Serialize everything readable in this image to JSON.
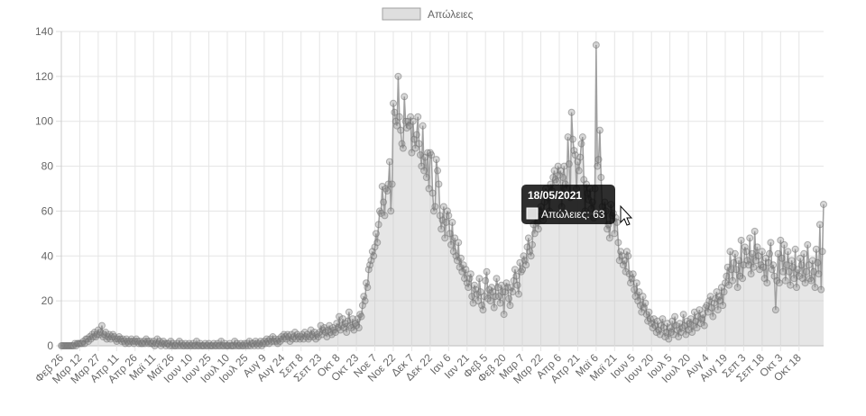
{
  "chart_data": {
    "type": "line",
    "grid": true,
    "legend": "top",
    "tooltip": {
      "title": "18/05/2021",
      "label": "Απώλειες: 63"
    },
    "ylim": [
      0,
      140
    ],
    "yticks": [
      0,
      20,
      40,
      60,
      80,
      100,
      120,
      140
    ],
    "categories": [
      "Φεβ 26",
      null,
      null,
      null,
      null,
      null,
      null,
      null,
      null,
      null,
      null,
      null,
      null,
      null,
      null,
      "Μαρ 12",
      null,
      null,
      null,
      null,
      null,
      null,
      null,
      null,
      null,
      null,
      null,
      null,
      null,
      null,
      "Μαρ 27",
      null,
      null,
      null,
      null,
      null,
      null,
      null,
      null,
      null,
      null,
      null,
      null,
      null,
      null,
      "Απρ 11",
      null,
      null,
      null,
      null,
      null,
      null,
      null,
      null,
      null,
      null,
      null,
      null,
      null,
      null,
      "Απρ 26",
      null,
      null,
      null,
      null,
      null,
      null,
      null,
      null,
      null,
      null,
      null,
      null,
      null,
      null,
      "Μαϊ 11",
      null,
      null,
      null,
      null,
      null,
      null,
      null,
      null,
      null,
      null,
      null,
      null,
      null,
      null,
      "Μαϊ 26",
      null,
      null,
      null,
      null,
      null,
      null,
      null,
      null,
      null,
      null,
      null,
      null,
      null,
      null,
      "Ιουν 10",
      null,
      null,
      null,
      null,
      null,
      null,
      null,
      null,
      null,
      null,
      null,
      null,
      null,
      null,
      "Ιουν 25",
      null,
      null,
      null,
      null,
      null,
      null,
      null,
      null,
      null,
      null,
      null,
      null,
      null,
      null,
      "Ιουλ 10",
      null,
      null,
      null,
      null,
      null,
      null,
      null,
      null,
      null,
      null,
      null,
      null,
      null,
      null,
      "Ιουλ 25",
      null,
      null,
      null,
      null,
      null,
      null,
      null,
      null,
      null,
      null,
      null,
      null,
      null,
      null,
      "Αυγ 9",
      null,
      null,
      null,
      null,
      null,
      null,
      null,
      null,
      null,
      null,
      null,
      null,
      null,
      null,
      "Αυγ 24",
      null,
      null,
      null,
      null,
      null,
      null,
      null,
      null,
      null,
      null,
      null,
      null,
      null,
      null,
      "Σεπ 8",
      null,
      null,
      null,
      null,
      null,
      null,
      null,
      null,
      null,
      null,
      null,
      null,
      null,
      null,
      "Σεπ 23",
      null,
      null,
      null,
      null,
      null,
      null,
      null,
      null,
      null,
      null,
      null,
      null,
      null,
      null,
      "Οκτ 8",
      null,
      null,
      null,
      null,
      null,
      null,
      null,
      null,
      null,
      null,
      null,
      null,
      null,
      null,
      "Οκτ 23",
      null,
      null,
      null,
      null,
      null,
      null,
      null,
      null,
      null,
      null,
      null,
      null,
      null,
      null,
      "Νοε 7",
      null,
      null,
      null,
      null,
      null,
      null,
      null,
      null,
      null,
      null,
      null,
      null,
      null,
      null,
      "Νοε 22",
      null,
      null,
      null,
      null,
      null,
      null,
      null,
      null,
      null,
      null,
      null,
      null,
      null,
      null,
      "Δεκ 7",
      null,
      null,
      null,
      null,
      null,
      null,
      null,
      null,
      null,
      null,
      null,
      null,
      null,
      null,
      "Δεκ 22",
      null,
      null,
      null,
      null,
      null,
      null,
      null,
      null,
      null,
      null,
      null,
      null,
      null,
      null,
      "Ιαν 6",
      null,
      null,
      null,
      null,
      null,
      null,
      null,
      null,
      null,
      null,
      null,
      null,
      null,
      null,
      "Ιαν 21",
      null,
      null,
      null,
      null,
      null,
      null,
      null,
      null,
      null,
      null,
      null,
      null,
      null,
      null,
      "Φεβ 5",
      null,
      null,
      null,
      null,
      null,
      null,
      null,
      null,
      null,
      null,
      null,
      null,
      null,
      null,
      "Φεβ 20",
      null,
      null,
      null,
      null,
      null,
      null,
      null,
      null,
      null,
      null,
      null,
      null,
      null,
      null,
      "Μαρ 7",
      null,
      null,
      null,
      null,
      null,
      null,
      null,
      null,
      null,
      null,
      null,
      null,
      null,
      null,
      "Μαρ 22",
      null,
      null,
      null,
      null,
      null,
      null,
      null,
      null,
      null,
      null,
      null,
      null,
      null,
      null,
      "Απρ 6",
      null,
      null,
      null,
      null,
      null,
      null,
      null,
      null,
      null,
      null,
      null,
      null,
      null,
      null,
      "Απρ 21",
      null,
      null,
      null,
      null,
      null,
      null,
      null,
      null,
      null,
      null,
      null,
      null,
      null,
      null,
      "Μαϊ 6",
      null,
      null,
      null,
      null,
      null,
      null,
      null,
      null,
      null,
      null,
      null,
      null,
      null,
      null,
      "Μαϊ 21",
      null,
      null,
      null,
      null,
      null,
      null,
      null,
      null,
      null,
      null,
      null,
      null,
      null,
      null,
      "Ιουν 5",
      null,
      null,
      null,
      null,
      null,
      null,
      null,
      null,
      null,
      null,
      null,
      null,
      null,
      null,
      "Ιουν 20",
      null,
      null,
      null,
      null,
      null,
      null,
      null,
      null,
      null,
      null,
      null,
      null,
      null,
      null,
      "Ιουλ 5",
      null,
      null,
      null,
      null,
      null,
      null,
      null,
      null,
      null,
      null,
      null,
      null,
      null,
      null,
      "Ιουλ 20",
      null,
      null,
      null,
      null,
      null,
      null,
      null,
      null,
      null,
      null,
      null,
      null,
      null,
      null,
      "Αυγ 4",
      null,
      null,
      null,
      null,
      null,
      null,
      null,
      null,
      null,
      null,
      null,
      null,
      null,
      null,
      "Αυγ 19",
      null,
      null,
      null,
      null,
      null,
      null,
      null,
      null,
      null,
      null,
      null,
      null,
      null,
      null,
      "Σεπ 3",
      null,
      null,
      null,
      null,
      null,
      null,
      null,
      null,
      null,
      null,
      null,
      null,
      null,
      null,
      "Σεπ 18",
      null,
      null,
      null,
      null,
      null,
      null,
      null,
      null,
      null,
      null,
      null,
      null,
      null,
      null,
      "Οκτ 3",
      null,
      null,
      null,
      null,
      null,
      null,
      null,
      null,
      null,
      null,
      null,
      null,
      null,
      null,
      "Οκτ 18",
      null,
      null,
      null,
      null,
      null,
      null,
      null,
      null,
      null,
      null,
      null,
      null,
      null,
      null,
      null,
      null,
      null,
      null,
      null,
      null
    ],
    "series": [
      {
        "name": "Απώλειες",
        "color": "#a0a0a0",
        "values": [
          0,
          0,
          0,
          0,
          0,
          0,
          0,
          0,
          0,
          0,
          0,
          1,
          0,
          1,
          1,
          1,
          1,
          1,
          2,
          1,
          3,
          3,
          2,
          4,
          3,
          5,
          4,
          6,
          4,
          5,
          7,
          5,
          6,
          9,
          4,
          5,
          6,
          3,
          4,
          5,
          3,
          4,
          5,
          4,
          3,
          2,
          3,
          4,
          3,
          2,
          3,
          2,
          1,
          3,
          2,
          1,
          2,
          3,
          2,
          1,
          2,
          3,
          2,
          1,
          2,
          1,
          1,
          2,
          1,
          3,
          2,
          1,
          2,
          1,
          1,
          2,
          0,
          1,
          3,
          1,
          2,
          0,
          1,
          2,
          1,
          0,
          1,
          1,
          0,
          2,
          0,
          1,
          0,
          0,
          1,
          0,
          2,
          0,
          1,
          0,
          0,
          1,
          0,
          0,
          1,
          0,
          0,
          1,
          0,
          0,
          2,
          0,
          0,
          1,
          0,
          0,
          0,
          1,
          0,
          0,
          1,
          0,
          0,
          0,
          1,
          0,
          0,
          1,
          0,
          0,
          2,
          0,
          0,
          1,
          0,
          0,
          0,
          1,
          0,
          0,
          0,
          2,
          0,
          1,
          0,
          0,
          1,
          0,
          0,
          1,
          0,
          1,
          0,
          2,
          0,
          1,
          1,
          0,
          2,
          1,
          0,
          1,
          2,
          0,
          1,
          2,
          1,
          3,
          2,
          1,
          3,
          2,
          4,
          2,
          3,
          2,
          1,
          3,
          2,
          4,
          3,
          5,
          4,
          3,
          5,
          4,
          2,
          5,
          3,
          4,
          6,
          3,
          5,
          4,
          3,
          4,
          5,
          3,
          6,
          4,
          5,
          3,
          4,
          7,
          5,
          4,
          6,
          3,
          5,
          4,
          6,
          9,
          5,
          7,
          8,
          6,
          4,
          7,
          9,
          6,
          5,
          8,
          7,
          6,
          10,
          8,
          13,
          7,
          9,
          12,
          8,
          10,
          6,
          11,
          15,
          9,
          8,
          12,
          7,
          10,
          9,
          12,
          8,
          14,
          13,
          18,
          22,
          20,
          28,
          26,
          34,
          36,
          38,
          42,
          40,
          44,
          50,
          46,
          54,
          60,
          59,
          71,
          64,
          58,
          70,
          69,
          72,
          82,
          60,
          72,
          108,
          104,
          100,
          98,
          120,
          102,
          96,
          90,
          88,
          111,
          100,
          97,
          100,
          98,
          102,
          86,
          100,
          92,
          88,
          94,
          102,
          90,
          85,
          80,
          98,
          78,
          84,
          75,
          86,
          70,
          86,
          85,
          68,
          60,
          62,
          83,
          78,
          72,
          58,
          52,
          56,
          62,
          48,
          55,
          60,
          58,
          50,
          45,
          55,
          42,
          48,
          40,
          38,
          46,
          35,
          39,
          33,
          36,
          30,
          34,
          28,
          26,
          30,
          32,
          22,
          19,
          27,
          25,
          23,
          20,
          30,
          24,
          18,
          16,
          22,
          29,
          33,
          21,
          25,
          20,
          26,
          24,
          17,
          22,
          30,
          26,
          22,
          19,
          27,
          24,
          14,
          24,
          28,
          26,
          21,
          18,
          26,
          24,
          29,
          34,
          31,
          27,
          23,
          37,
          33,
          34,
          40,
          38,
          36,
          44,
          48,
          42,
          40,
          45,
          54,
          50,
          58,
          55,
          52,
          60,
          62,
          58,
          56,
          64,
          70,
          67,
          66,
          60,
          72,
          69,
          75,
          78,
          74,
          73,
          80,
          76,
          78,
          62,
          75,
          80,
          72,
          70,
          93,
          81,
          66,
          104,
          92,
          87,
          85,
          70,
          82,
          78,
          84,
          90,
          93,
          74,
          60,
          72,
          68,
          65,
          70,
          61,
          64,
          57,
          70,
          134,
          80,
          83,
          96,
          75,
          62,
          58,
          64,
          60,
          52,
          54,
          48,
          63,
          58,
          59,
          50,
          57,
          55,
          46,
          38,
          42,
          40,
          36,
          38,
          33,
          42,
          40,
          32,
          28,
          30,
          32,
          25,
          22,
          28,
          20,
          24,
          18,
          15,
          22,
          17,
          19,
          14,
          11,
          15,
          12,
          10,
          8,
          12,
          9,
          6,
          11,
          7,
          5,
          9,
          12,
          8,
          4,
          6,
          10,
          3,
          8,
          6,
          11,
          5,
          13,
          9,
          7,
          4,
          10,
          6,
          8,
          14,
          9,
          5,
          11,
          7,
          10,
          12,
          6,
          9,
          15,
          11,
          8,
          13,
          16,
          10,
          12,
          14,
          9,
          17,
          18,
          15,
          20,
          22,
          17,
          13,
          19,
          21,
          24,
          16,
          22,
          20,
          26,
          18,
          24,
          28,
          31,
          35,
          27,
          42,
          34,
          29,
          37,
          41,
          34,
          26,
          38,
          31,
          47,
          30,
          36,
          44,
          42,
          38,
          36,
          48,
          32,
          41,
          35,
          51,
          38,
          44,
          40,
          34,
          36,
          42,
          35,
          30,
          39,
          28,
          37,
          41,
          46,
          34,
          36,
          31,
          16,
          29,
          41,
          28,
          47,
          39,
          33,
          45,
          29,
          36,
          42,
          33,
          27,
          38,
          35,
          30,
          43,
          26,
          34,
          31,
          39,
          36,
          30,
          41,
          28,
          33,
          45,
          36,
          30,
          29,
          38,
          33,
          26,
          43,
          37,
          32,
          54,
          25,
          42,
          63
        ]
      }
    ]
  }
}
